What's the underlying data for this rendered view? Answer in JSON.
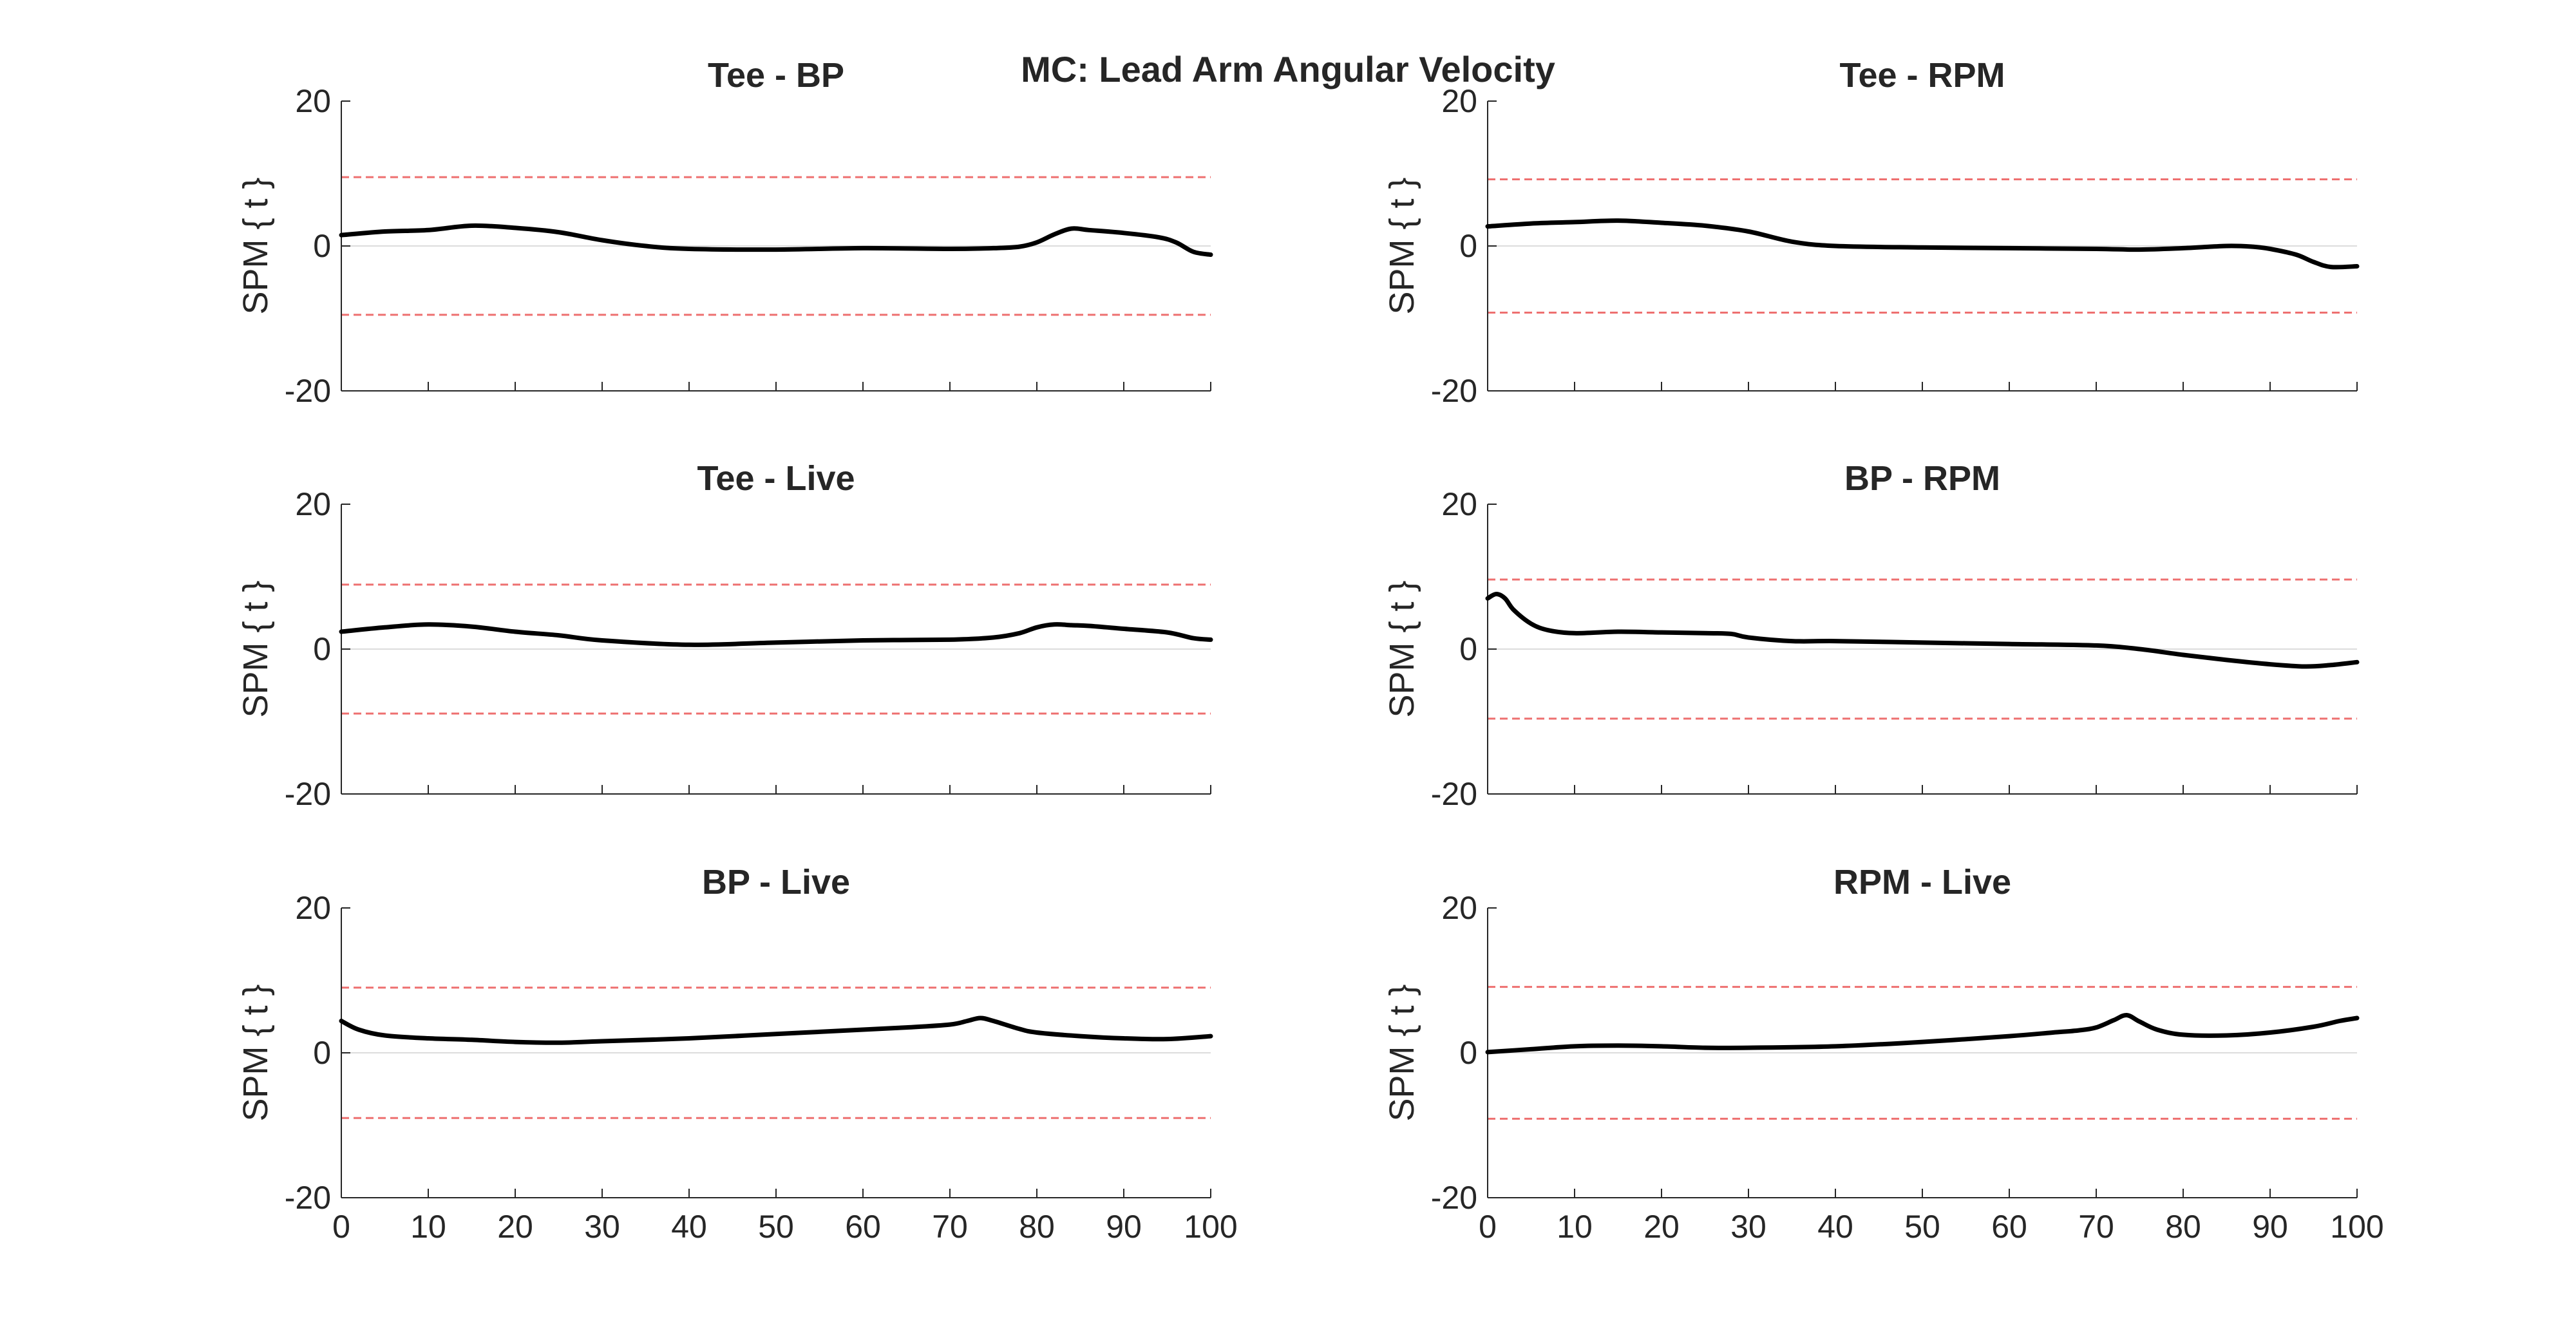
{
  "figure_title": "MC: Lead Arm Angular Velocity",
  "chart_data": [
    {
      "type": "line",
      "title": "Tee - BP",
      "ylabel": "SPM { t }",
      "xlabel": "",
      "xlim": [
        0,
        100
      ],
      "ylim": [
        -20,
        20
      ],
      "xticks": [
        0,
        10,
        20,
        30,
        40,
        50,
        60,
        70,
        80,
        90,
        100
      ],
      "yticks": [
        -20,
        0,
        20
      ],
      "show_xticklabels": false,
      "threshold": 9.5,
      "x": [
        0,
        5,
        10,
        15,
        20,
        25,
        30,
        35,
        40,
        50,
        60,
        70,
        75,
        78,
        80,
        82,
        84,
        86,
        90,
        94,
        96,
        98,
        100
      ],
      "y": [
        1.5,
        2.0,
        2.2,
        2.8,
        2.5,
        1.9,
        0.8,
        0.0,
        -0.4,
        -0.5,
        -0.3,
        -0.4,
        -0.3,
        -0.1,
        0.5,
        1.6,
        2.4,
        2.2,
        1.8,
        1.2,
        0.5,
        -0.8,
        -1.2
      ]
    },
    {
      "type": "line",
      "title": "Tee - RPM",
      "ylabel": "SPM { t }",
      "xlabel": "",
      "xlim": [
        0,
        100
      ],
      "ylim": [
        -20,
        20
      ],
      "xticks": [
        0,
        10,
        20,
        30,
        40,
        50,
        60,
        70,
        80,
        90,
        100
      ],
      "yticks": [
        -20,
        0,
        20
      ],
      "show_xticklabels": false,
      "threshold": 9.2,
      "x": [
        0,
        5,
        10,
        15,
        20,
        25,
        30,
        35,
        40,
        50,
        60,
        70,
        75,
        80,
        85,
        88,
        90,
        93,
        95,
        97,
        100
      ],
      "y": [
        2.7,
        3.1,
        3.3,
        3.5,
        3.2,
        2.8,
        2.0,
        0.6,
        0.0,
        -0.2,
        -0.3,
        -0.4,
        -0.5,
        -0.3,
        0.0,
        -0.1,
        -0.4,
        -1.2,
        -2.2,
        -2.9,
        -2.8
      ]
    },
    {
      "type": "line",
      "title": "Tee - Live",
      "ylabel": "SPM { t }",
      "xlabel": "",
      "xlim": [
        0,
        100
      ],
      "ylim": [
        -20,
        20
      ],
      "xticks": [
        0,
        10,
        20,
        30,
        40,
        50,
        60,
        70,
        80,
        90,
        100
      ],
      "yticks": [
        -20,
        0,
        20
      ],
      "show_xticklabels": false,
      "threshold": 8.9,
      "x": [
        0,
        5,
        10,
        15,
        20,
        25,
        30,
        40,
        50,
        60,
        70,
        75,
        78,
        80,
        82,
        84,
        86,
        90,
        95,
        98,
        100
      ],
      "y": [
        2.4,
        3.0,
        3.4,
        3.1,
        2.4,
        1.9,
        1.2,
        0.6,
        0.9,
        1.2,
        1.3,
        1.6,
        2.2,
        3.0,
        3.4,
        3.3,
        3.2,
        2.8,
        2.3,
        1.5,
        1.3
      ]
    },
    {
      "type": "line",
      "title": "BP - RPM",
      "ylabel": "SPM { t }",
      "xlabel": "",
      "xlim": [
        0,
        100
      ],
      "ylim": [
        -20,
        20
      ],
      "xticks": [
        0,
        10,
        20,
        30,
        40,
        50,
        60,
        70,
        80,
        90,
        100
      ],
      "yticks": [
        -20,
        0,
        20
      ],
      "show_xticklabels": false,
      "threshold": 9.6,
      "x": [
        0,
        1,
        2,
        3,
        5,
        7,
        10,
        15,
        20,
        25,
        28,
        30,
        35,
        40,
        50,
        60,
        70,
        75,
        80,
        85,
        90,
        94,
        97,
        100
      ],
      "y": [
        7.0,
        7.6,
        7.0,
        5.4,
        3.5,
        2.6,
        2.2,
        2.4,
        2.3,
        2.2,
        2.1,
        1.6,
        1.1,
        1.1,
        0.9,
        0.7,
        0.5,
        0.0,
        -0.8,
        -1.5,
        -2.1,
        -2.4,
        -2.2,
        -1.8
      ]
    },
    {
      "type": "line",
      "title": "BP - Live",
      "ylabel": "SPM { t }",
      "xlabel": "",
      "xlim": [
        0,
        100
      ],
      "ylim": [
        -20,
        20
      ],
      "xticks": [
        0,
        10,
        20,
        30,
        40,
        50,
        60,
        70,
        80,
        90,
        100
      ],
      "yticks": [
        -20,
        0,
        20
      ],
      "show_xticklabels": true,
      "threshold": 9.0,
      "x": [
        0,
        2,
        5,
        10,
        15,
        20,
        25,
        30,
        40,
        50,
        60,
        65,
        70,
        72,
        73.5,
        75,
        78,
        80,
        85,
        90,
        95,
        100
      ],
      "y": [
        4.4,
        3.2,
        2.4,
        2.0,
        1.8,
        1.5,
        1.4,
        1.6,
        2.0,
        2.6,
        3.2,
        3.5,
        3.9,
        4.4,
        4.8,
        4.4,
        3.3,
        2.8,
        2.3,
        2.0,
        1.9,
        2.3
      ]
    },
    {
      "type": "line",
      "title": "RPM - Live",
      "ylabel": "SPM { t }",
      "xlabel": "",
      "xlim": [
        0,
        100
      ],
      "ylim": [
        -20,
        20
      ],
      "xticks": [
        0,
        10,
        20,
        30,
        40,
        50,
        60,
        70,
        80,
        90,
        100
      ],
      "yticks": [
        -20,
        0,
        20
      ],
      "show_xticklabels": true,
      "threshold": 9.1,
      "x": [
        0,
        5,
        10,
        15,
        20,
        25,
        30,
        40,
        50,
        60,
        65,
        68,
        70,
        72,
        73.5,
        75,
        77,
        80,
        85,
        90,
        95,
        98,
        100
      ],
      "y": [
        0.1,
        0.5,
        0.9,
        1.0,
        0.9,
        0.7,
        0.7,
        0.9,
        1.5,
        2.3,
        2.8,
        3.1,
        3.5,
        4.5,
        5.2,
        4.3,
        3.2,
        2.5,
        2.4,
        2.8,
        3.6,
        4.4,
        4.8
      ]
    }
  ]
}
